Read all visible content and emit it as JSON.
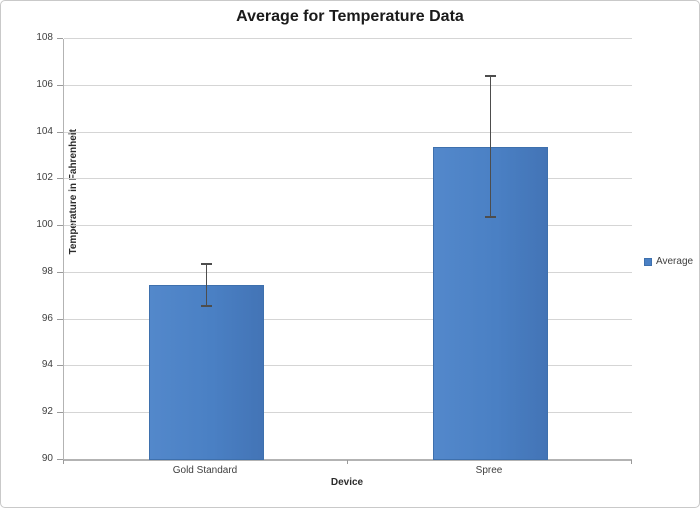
{
  "chart_data": {
    "type": "bar",
    "title": "Average for Temperature Data",
    "xlabel": "Device",
    "ylabel": "Temperature in Fahrenheit",
    "categories": [
      "Gold Standard",
      "Spree"
    ],
    "series": [
      {
        "name": "Average",
        "values": [
          97.5,
          103.4
        ],
        "error_plus": [
          0.9,
          3.0
        ],
        "error_minus": [
          0.9,
          3.0
        ]
      }
    ],
    "ylim": [
      90,
      108
    ],
    "ytick_step": 2,
    "grid": true,
    "legend_position": "right",
    "bar_color": "#4a80c4",
    "bar_border_color": "#3e70ad",
    "error_bar_color": "#4d4d4d",
    "gridline_color": "#d5d5d5",
    "axis_line_color": "#b3b3b3"
  },
  "legend": {
    "items": [
      {
        "label": "Average",
        "color": "#4a80c4"
      }
    ]
  }
}
